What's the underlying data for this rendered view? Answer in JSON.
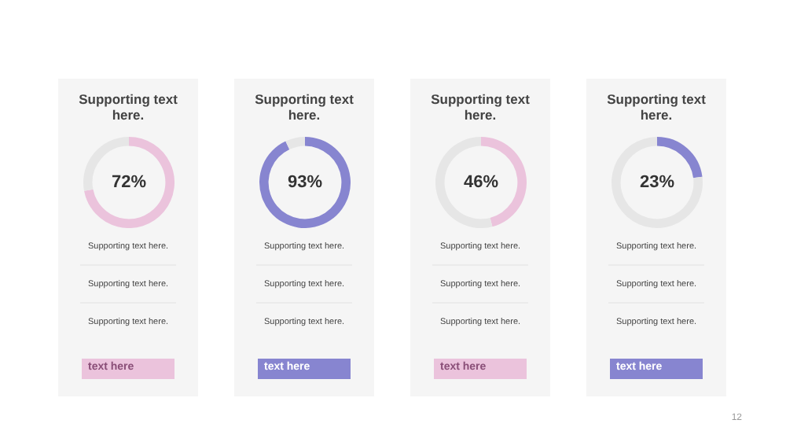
{
  "chart_data": [
    {
      "type": "donut",
      "title": "Supporting text here.",
      "categories": [
        null,
        null
      ],
      "values": [
        72,
        28
      ],
      "colors": [
        "#ebc3dc",
        "#e6e6e6"
      ],
      "annotations": [
        "72%",
        "Supporting text here.",
        "Supporting text here.",
        "Supporting text here.",
        "text here"
      ]
    },
    {
      "type": "donut",
      "title": "Supporting text here.",
      "categories": [
        null,
        null
      ],
      "values": [
        93,
        7
      ],
      "colors": [
        "#8785d0",
        "#e6e6e6"
      ],
      "annotations": [
        "93%",
        "Supporting text here.",
        "Supporting text here.",
        "Supporting text here.",
        "text here"
      ]
    },
    {
      "type": "donut",
      "title": "Supporting text here.",
      "categories": [
        null,
        null
      ],
      "values": [
        46,
        54
      ],
      "colors": [
        "#ebc3dc",
        "#e6e6e6"
      ],
      "annotations": [
        "46%",
        "Supporting text here.",
        "Supporting text here.",
        "Supporting text here.",
        "text here"
      ]
    },
    {
      "type": "donut",
      "title": "Supporting text here.",
      "categories": [
        null,
        null
      ],
      "values": [
        23,
        77
      ],
      "colors": [
        "#8785d0",
        "#e6e6e6"
      ],
      "annotations": [
        "23%",
        "Supporting text here.",
        "Supporting text here.",
        "Supporting text here.",
        "text here",
        "12"
      ]
    }
  ]
}
